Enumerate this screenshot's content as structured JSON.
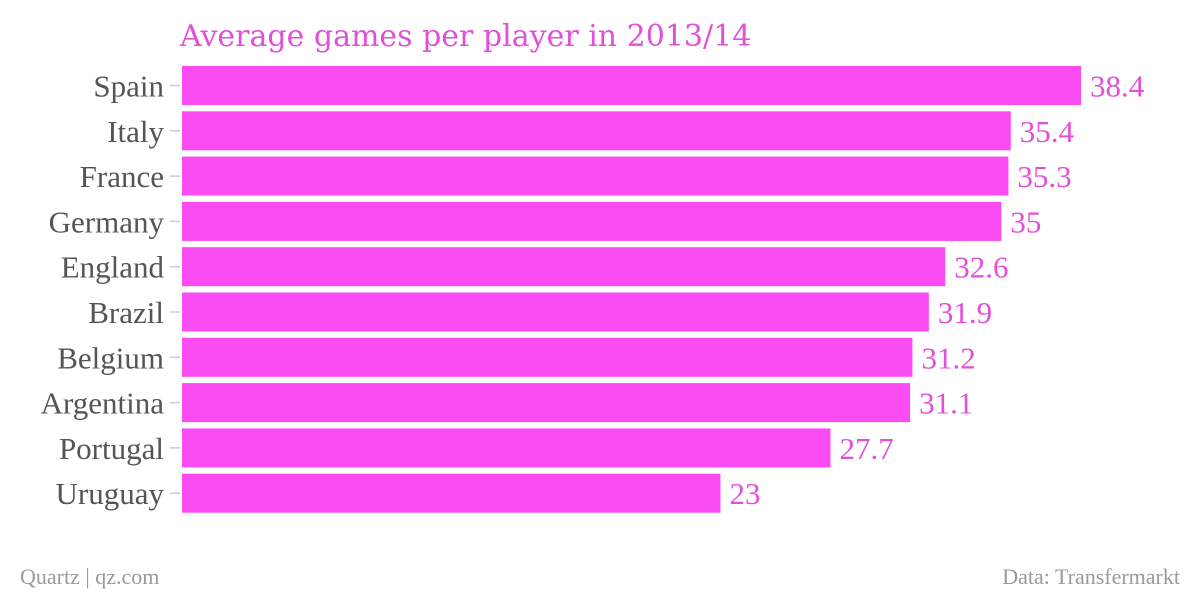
{
  "chart_data": {
    "type": "bar",
    "orientation": "horizontal",
    "title": "Average games per player in 2013/14",
    "categories": [
      "Spain",
      "Italy",
      "France",
      "Germany",
      "England",
      "Brazil",
      "Belgium",
      "Argentina",
      "Portugal",
      "Uruguay"
    ],
    "values": [
      38.4,
      35.4,
      35.3,
      35,
      32.6,
      31.9,
      31.2,
      31.1,
      27.7,
      23
    ],
    "value_labels": [
      "38.4",
      "35.4",
      "35.3",
      "35",
      "32.6",
      "31.9",
      "31.2",
      "31.1",
      "27.7",
      "23"
    ],
    "xlim": [
      0,
      38.4
    ],
    "grid": false,
    "xlabel": "",
    "ylabel": ""
  },
  "footer": {
    "source_left": "Quartz | qz.com",
    "source_right": "Data: Transfermarkt"
  },
  "colors": {
    "bar": "#fb4bf2",
    "accent_text": "#e24fd8",
    "axis_text": "#555555",
    "footer_text": "#9a9a9a",
    "tick": "#cccccc"
  }
}
